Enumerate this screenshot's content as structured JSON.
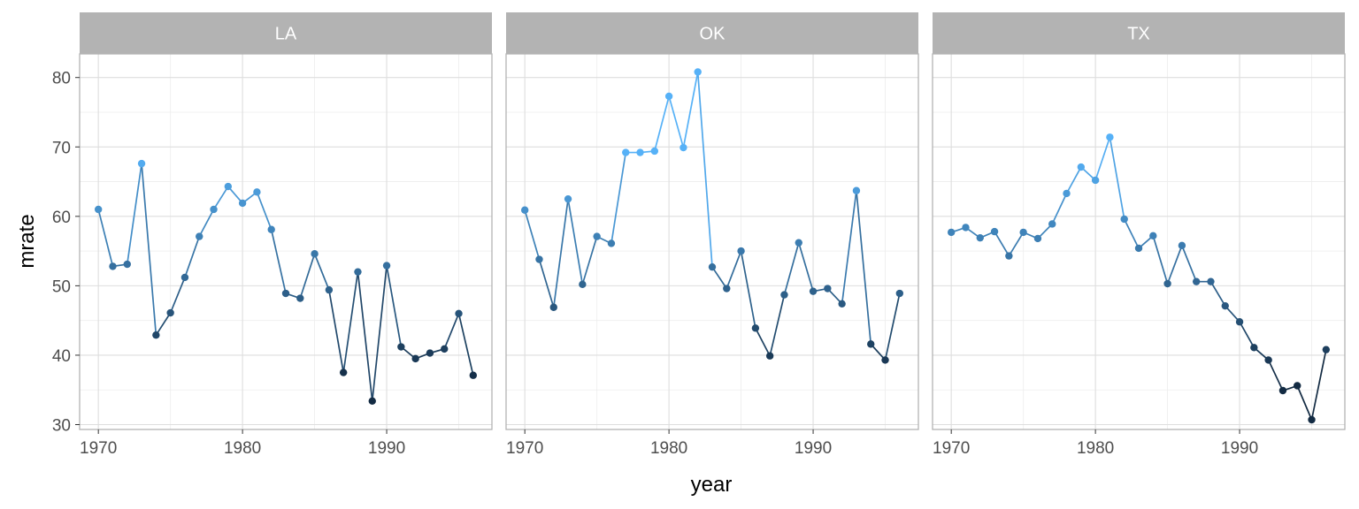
{
  "chart_data": {
    "type": "line",
    "xlabel": "year",
    "ylabel": "mrate",
    "xlim": [
      1968.7,
      1997.3
    ],
    "ylim": [
      29.3,
      83.4
    ],
    "x_ticks": [
      1970,
      1980,
      1990
    ],
    "y_ticks": [
      30,
      40,
      50,
      60,
      70,
      80
    ],
    "grid": true,
    "color_scale": {
      "low": "#132b43",
      "high": "#56b1f7",
      "domain": [
        36,
        69
      ]
    },
    "panels": [
      {
        "label": "LA",
        "x": [
          1970,
          1971,
          1972,
          1973,
          1974,
          1975,
          1976,
          1977,
          1978,
          1979,
          1980,
          1981,
          1982,
          1983,
          1984,
          1985,
          1986,
          1987,
          1988,
          1989,
          1990,
          1991,
          1992,
          1993,
          1994,
          1995,
          1996
        ],
        "y": [
          61.0,
          52.8,
          53.1,
          67.6,
          42.9,
          46.1,
          51.2,
          57.1,
          61.0,
          64.3,
          61.9,
          63.5,
          58.1,
          48.9,
          48.2,
          54.6,
          49.4,
          37.5,
          52.0,
          33.4,
          52.9,
          41.2,
          39.5,
          40.3,
          40.9,
          46.0,
          37.1
        ]
      },
      {
        "label": "OK",
        "x": [
          1970,
          1971,
          1972,
          1973,
          1974,
          1975,
          1976,
          1977,
          1978,
          1979,
          1980,
          1981,
          1982,
          1983,
          1984,
          1985,
          1986,
          1987,
          1988,
          1989,
          1990,
          1991,
          1992,
          1993,
          1994,
          1995,
          1996
        ],
        "y": [
          60.9,
          53.8,
          46.9,
          62.5,
          50.2,
          57.1,
          56.1,
          69.2,
          69.2,
          69.4,
          77.3,
          69.9,
          80.8,
          52.7,
          49.6,
          55.0,
          43.9,
          39.9,
          48.7,
          56.2,
          49.2,
          49.6,
          47.4,
          63.7,
          41.6,
          39.3,
          48.9
        ]
      },
      {
        "label": "TX",
        "x": [
          1970,
          1971,
          1972,
          1973,
          1974,
          1975,
          1976,
          1977,
          1978,
          1979,
          1980,
          1981,
          1982,
          1983,
          1984,
          1985,
          1986,
          1987,
          1988,
          1989,
          1990,
          1991,
          1992,
          1993,
          1994,
          1995,
          1996
        ],
        "y": [
          57.7,
          58.4,
          56.9,
          57.8,
          54.3,
          57.7,
          56.8,
          58.9,
          63.3,
          67.1,
          65.2,
          71.4,
          59.6,
          55.4,
          57.2,
          50.3,
          55.8,
          50.6,
          50.6,
          47.1,
          44.8,
          41.1,
          39.3,
          34.9,
          35.6,
          30.7,
          40.8
        ]
      }
    ]
  }
}
